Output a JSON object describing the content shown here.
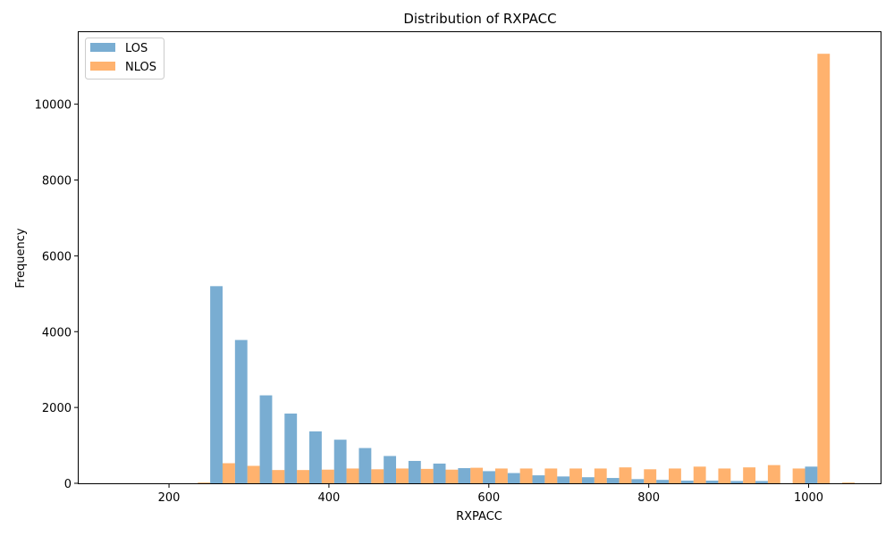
{
  "chart_data": {
    "type": "bar",
    "title": "Distribution of RXPACC",
    "xlabel": "RXPACC",
    "ylabel": "Frequency",
    "xlim": [
      87,
      1090
    ],
    "ylim": [
      0,
      11900
    ],
    "xticks": [
      200,
      400,
      600,
      800,
      1000
    ],
    "yticks": [
      0,
      2000,
      4000,
      6000,
      8000,
      10000
    ],
    "grid": false,
    "legend": "top-left",
    "bin_width": 31,
    "bins": [
      143,
      174,
      205,
      236,
      267,
      298,
      329,
      360,
      391,
      422,
      453,
      484,
      515,
      546,
      577,
      608,
      639,
      670,
      701,
      732,
      763,
      794,
      825,
      856,
      887,
      918,
      949,
      980,
      1011,
      1042
    ],
    "series": [
      {
        "name": "LOS",
        "color": "#1f77b4",
        "opacity": 0.6,
        "values": [
          0,
          0,
          0,
          0,
          5200,
          3780,
          2320,
          1840,
          1370,
          1150,
          930,
          720,
          590,
          520,
          400,
          320,
          270,
          210,
          180,
          160,
          140,
          110,
          90,
          70,
          70,
          60,
          60,
          0,
          440,
          0
        ]
      },
      {
        "name": "NLOS",
        "color": "#ff7f0e",
        "opacity": 0.6,
        "values": [
          0,
          0,
          0,
          20,
          530,
          460,
          350,
          350,
          360,
          390,
          370,
          390,
          380,
          360,
          410,
          390,
          390,
          390,
          390,
          390,
          420,
          370,
          390,
          440,
          390,
          420,
          480,
          390,
          11330,
          20
        ]
      }
    ]
  }
}
